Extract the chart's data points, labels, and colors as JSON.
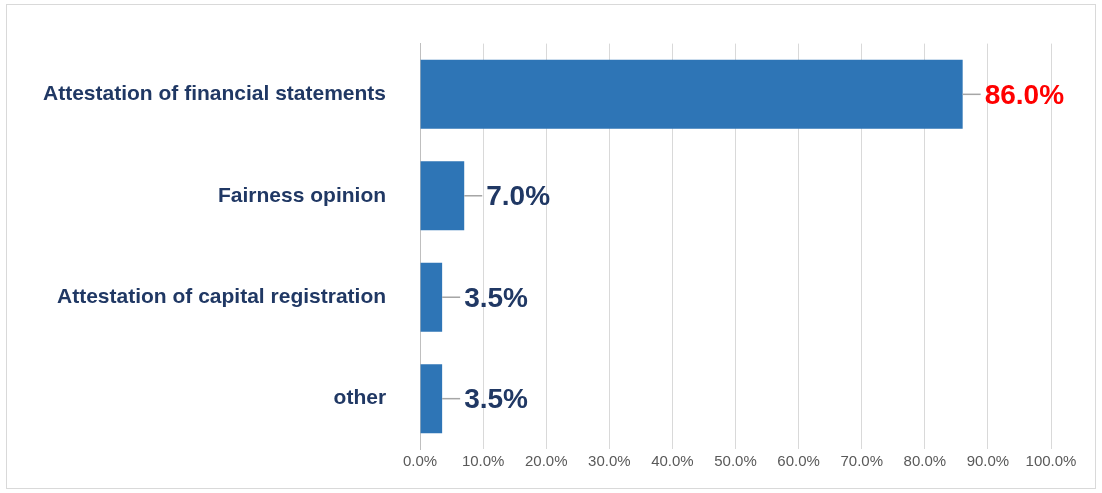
{
  "chart_data": {
    "type": "bar",
    "orientation": "horizontal",
    "categories": [
      "Attestation of financial statements",
      "Fairness opinion",
      "Attestation of capital registration",
      "other"
    ],
    "values": [
      86.0,
      7.0,
      3.5,
      3.5
    ],
    "color": "#2e75b6",
    "value_labels": [
      "86.0%",
      "7.0%",
      "3.5%",
      "3.5%"
    ],
    "xlim": [
      0,
      100
    ],
    "xticks": [
      {
        "value": 0,
        "label": "0.0%"
      },
      {
        "value": 10,
        "label": "10.0%"
      },
      {
        "value": 20,
        "label": "20.0%"
      },
      {
        "value": 30,
        "label": "30.0%"
      },
      {
        "value": 40,
        "label": "40.0%"
      },
      {
        "value": 50,
        "label": "50.0%"
      },
      {
        "value": 60,
        "label": "60.0%"
      },
      {
        "value": 70,
        "label": "70.0%"
      },
      {
        "value": 80,
        "label": "80.0%"
      },
      {
        "value": 90,
        "label": "90.0%"
      },
      {
        "value": 100,
        "label": "100.0%"
      }
    ],
    "grid": "x",
    "legend": false
  }
}
